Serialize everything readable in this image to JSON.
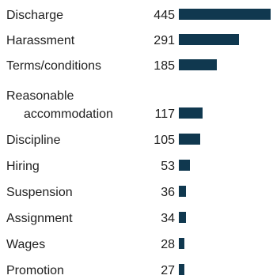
{
  "chart_data": {
    "type": "bar",
    "orientation": "horizontal",
    "categories": [
      [
        "Discharge"
      ],
      [
        "Harassment"
      ],
      [
        "Terms/conditions"
      ],
      [
        "Reasonable",
        "accommodation"
      ],
      [
        "Discipline"
      ],
      [
        "Hiring"
      ],
      [
        "Suspension"
      ],
      [
        "Assignment"
      ],
      [
        "Wages"
      ],
      [
        "Promotion"
      ]
    ],
    "values": [
      445,
      291,
      185,
      117,
      105,
      53,
      36,
      34,
      28,
      27
    ],
    "value_labels": [
      "445",
      "291",
      "185",
      "117",
      "105",
      "53",
      "36",
      "34",
      "28",
      "27"
    ],
    "bar_color": "#10384f",
    "text_color": "#1f1f1f",
    "title": "",
    "xlabel": "",
    "ylabel": "",
    "legend": "none",
    "grid": false
  }
}
